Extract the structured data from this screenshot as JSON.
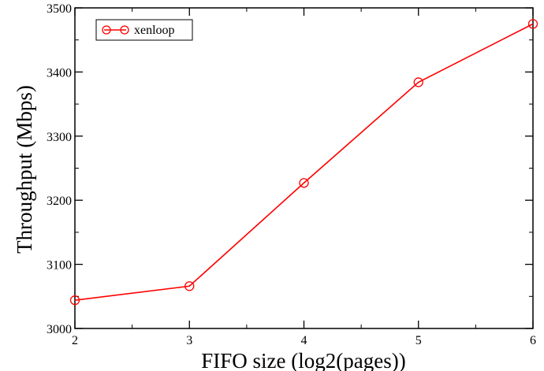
{
  "chart_data": {
    "type": "line",
    "title": "",
    "xlabel": "FIFO size (log2(pages))",
    "ylabel": "Throughput (Mbps)",
    "xlim": [
      2,
      6
    ],
    "ylim": [
      3000,
      3500
    ],
    "x_ticks": [
      2,
      3,
      4,
      5,
      6
    ],
    "y_ticks": [
      3000,
      3100,
      3200,
      3300,
      3400,
      3500
    ],
    "x_tick_labels": [
      "2",
      "3",
      "4",
      "5",
      "6"
    ],
    "y_tick_labels": [
      "3000",
      "3100",
      "3200",
      "3300",
      "3400",
      "3500"
    ],
    "grid": false,
    "legend_position": "top-left",
    "series": [
      {
        "name": "xenloop",
        "color": "#ff0000",
        "marker": "circle",
        "x": [
          2,
          3,
          4,
          5,
          6
        ],
        "y": [
          3044,
          3066,
          3227,
          3384,
          3475
        ]
      }
    ]
  }
}
